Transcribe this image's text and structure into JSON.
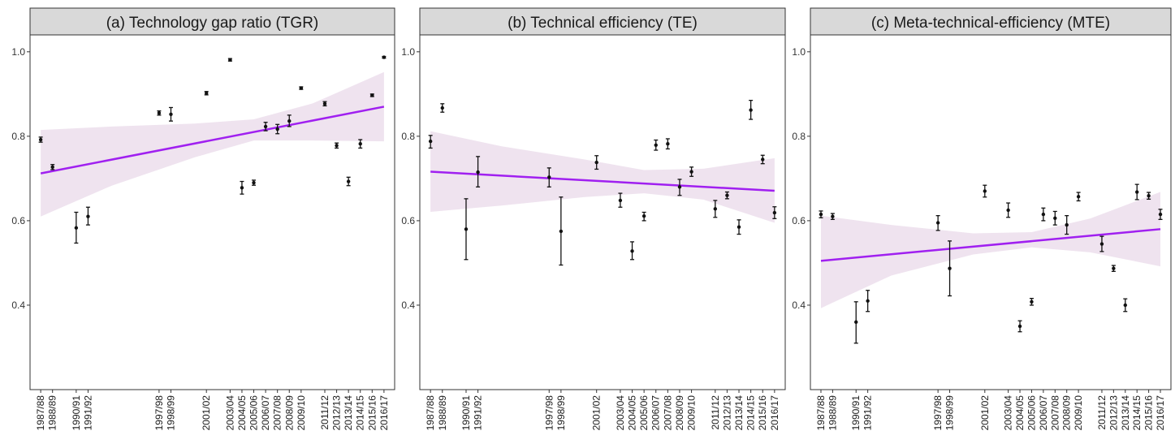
{
  "chart_data": [
    {
      "type": "scatter",
      "title": "(a) Technology gap ratio (TGR)",
      "xlabel": "",
      "ylabel": "",
      "ylim": [
        0.2,
        1.04
      ],
      "yticks": [
        "0.4",
        "0.6",
        "0.8",
        "1.0"
      ],
      "grid": false,
      "categories": [
        "1987/88",
        "1988/89",
        "1990/91",
        "1991/92",
        "1997/98",
        "1998/99",
        "2001/02",
        "2003/04",
        "2004/05",
        "2005/06",
        "2006/07",
        "2007/08",
        "2008/09",
        "2009/10",
        "2011/12",
        "2012/13",
        "2013/14",
        "2014/15",
        "2015/16",
        "2016/17"
      ],
      "x": [
        1987,
        1988,
        1990,
        1991,
        1997,
        1998,
        2001,
        2003,
        2004,
        2005,
        2006,
        2007,
        2008,
        2009,
        2011,
        2012,
        2013,
        2014,
        2015,
        2016
      ],
      "values": [
        0.792,
        0.727,
        0.583,
        0.61,
        0.855,
        0.852,
        0.902,
        0.981,
        0.678,
        0.69,
        0.823,
        0.817,
        0.836,
        0.914,
        0.877,
        0.778,
        0.693,
        0.782,
        0.897,
        0.987
      ],
      "lower": [
        0.786,
        0.721,
        0.547,
        0.59,
        0.85,
        0.836,
        0.898,
        0.978,
        0.663,
        0.684,
        0.813,
        0.806,
        0.823,
        0.911,
        0.872,
        0.772,
        0.683,
        0.772,
        0.894,
        0.985
      ],
      "upper": [
        0.798,
        0.733,
        0.62,
        0.632,
        0.86,
        0.868,
        0.906,
        0.984,
        0.693,
        0.696,
        0.833,
        0.828,
        0.85,
        0.917,
        0.882,
        0.784,
        0.703,
        0.792,
        0.9,
        0.989
      ],
      "trend": {
        "start": 0.712,
        "end": 0.87
      },
      "band": {
        "x": [
          1987,
          1993,
          2000,
          2005,
          2010,
          2016
        ],
        "lower": [
          0.61,
          0.683,
          0.75,
          0.79,
          0.79,
          0.788
        ],
        "upper": [
          0.815,
          0.823,
          0.83,
          0.84,
          0.878,
          0.952
        ]
      }
    },
    {
      "type": "scatter",
      "title": "(b) Technical efficiency (TE)",
      "xlabel": "",
      "ylabel": "",
      "ylim": [
        0.2,
        1.04
      ],
      "yticks": [
        "0.4",
        "0.6",
        "0.8",
        "1.0"
      ],
      "grid": false,
      "categories": [
        "1987/88",
        "1988/89",
        "1990/91",
        "1991/92",
        "1997/98",
        "1998/99",
        "2001/02",
        "2003/04",
        "2004/05",
        "2005/06",
        "2006/07",
        "2007/08",
        "2008/09",
        "2009/10",
        "2011/12",
        "2012/13",
        "2013/14",
        "2014/15",
        "2015/16",
        "2016/17"
      ],
      "x": [
        1987,
        1988,
        1990,
        1991,
        1997,
        1998,
        2001,
        2003,
        2004,
        2005,
        2006,
        2007,
        2008,
        2009,
        2011,
        2012,
        2013,
        2014,
        2015,
        2016
      ],
      "values": [
        0.788,
        0.867,
        0.58,
        0.715,
        0.703,
        0.575,
        0.738,
        0.648,
        0.528,
        0.611,
        0.779,
        0.782,
        0.68,
        0.716,
        0.628,
        0.66,
        0.585,
        0.862,
        0.745,
        0.619
      ],
      "lower": [
        0.772,
        0.857,
        0.508,
        0.68,
        0.68,
        0.495,
        0.722,
        0.632,
        0.508,
        0.6,
        0.767,
        0.77,
        0.66,
        0.705,
        0.608,
        0.652,
        0.568,
        0.84,
        0.735,
        0.605
      ],
      "upper": [
        0.802,
        0.877,
        0.652,
        0.752,
        0.725,
        0.656,
        0.754,
        0.665,
        0.55,
        0.62,
        0.791,
        0.794,
        0.698,
        0.727,
        0.648,
        0.668,
        0.602,
        0.885,
        0.755,
        0.633
      ],
      "trend": {
        "start": 0.716,
        "end": 0.671
      },
      "band": {
        "x": [
          1987,
          1993,
          2000,
          2005,
          2010,
          2016
        ],
        "lower": [
          0.621,
          0.636,
          0.656,
          0.665,
          0.65,
          0.595
        ],
        "upper": [
          0.812,
          0.776,
          0.745,
          0.72,
          0.723,
          0.748
        ]
      }
    },
    {
      "type": "scatter",
      "title": "(c) Meta-technical-efficiency (MTE)",
      "xlabel": "",
      "ylabel": "",
      "ylim": [
        0.2,
        1.04
      ],
      "yticks": [
        "0.4",
        "0.6",
        "0.8",
        "1.0"
      ],
      "grid": false,
      "categories": [
        "1987/88",
        "1988/89",
        "1990/91",
        "1991/92",
        "1997/98",
        "1998/99",
        "2001/02",
        "2003/04",
        "2004/05",
        "2005/06",
        "2006/07",
        "2007/08",
        "2008/09",
        "2009/10",
        "2011/12",
        "2012/13",
        "2013/14",
        "2014/15",
        "2015/16",
        "2016/17"
      ],
      "x": [
        1987,
        1988,
        1990,
        1991,
        1997,
        1998,
        2001,
        2003,
        2004,
        2005,
        2006,
        2007,
        2008,
        2009,
        2011,
        2012,
        2013,
        2014,
        2015,
        2016
      ],
      "values": [
        0.615,
        0.61,
        0.36,
        0.41,
        0.595,
        0.487,
        0.67,
        0.625,
        0.35,
        0.408,
        0.615,
        0.606,
        0.59,
        0.657,
        0.545,
        0.487,
        0.4,
        0.668,
        0.659,
        0.615
      ],
      "lower": [
        0.607,
        0.603,
        0.31,
        0.385,
        0.577,
        0.422,
        0.656,
        0.608,
        0.337,
        0.4,
        0.6,
        0.59,
        0.568,
        0.647,
        0.527,
        0.48,
        0.385,
        0.65,
        0.651,
        0.603
      ],
      "upper": [
        0.623,
        0.617,
        0.408,
        0.435,
        0.612,
        0.552,
        0.684,
        0.642,
        0.363,
        0.416,
        0.63,
        0.622,
        0.612,
        0.667,
        0.563,
        0.494,
        0.415,
        0.686,
        0.667,
        0.627
      ],
      "trend": {
        "start": 0.505,
        "end": 0.58
      },
      "band": {
        "x": [
          1987,
          1993,
          2000,
          2005,
          2010,
          2016
        ],
        "lower": [
          0.393,
          0.47,
          0.52,
          0.537,
          0.525,
          0.492
        ],
        "upper": [
          0.612,
          0.59,
          0.57,
          0.573,
          0.605,
          0.668
        ]
      }
    }
  ]
}
